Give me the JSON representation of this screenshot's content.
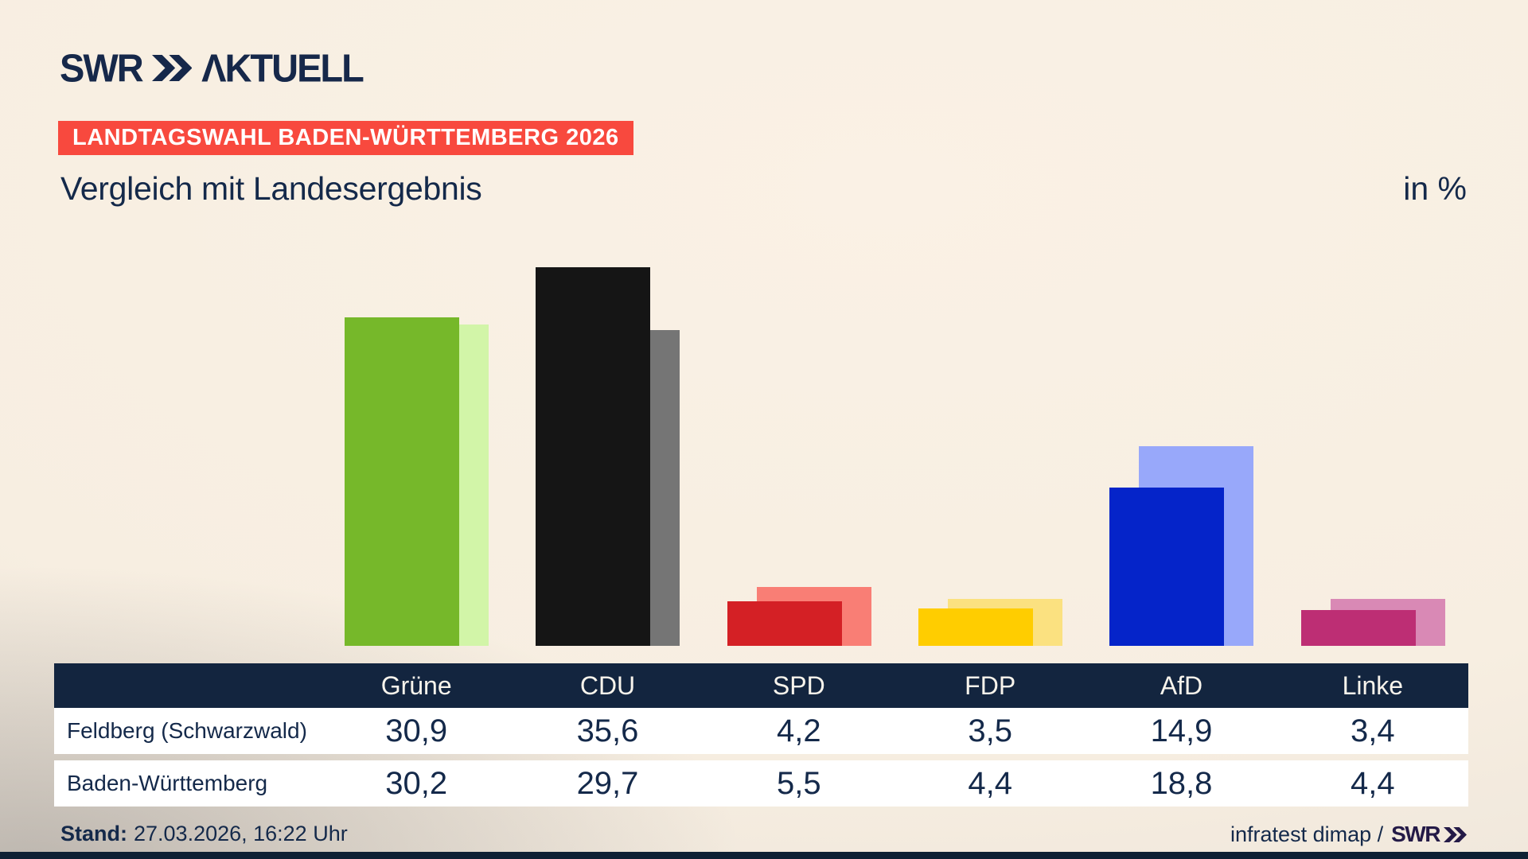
{
  "brand": {
    "logo_swr": "SWR",
    "logo_aktuell": "ΛKTUELL",
    "footer_logo": "SWR"
  },
  "header": {
    "badge": "LANDTAGSWAHL BADEN-WÜRTTEMBERG 2026",
    "title": "Vergleich mit Landesergebnis",
    "unit": "in %"
  },
  "footer": {
    "stand_label": "Stand:",
    "stand_value": "27.03.2026, 16:22 Uhr",
    "credit": "infratest dimap /"
  },
  "ui_colors": {
    "navy_text": "#14294a",
    "badge_bg": "#f8493e",
    "table_header_bg": "#13253f",
    "bottom_strip": "#0e2034",
    "credit_logo": "#241a47",
    "background": "#f7eee2"
  },
  "chart_data": {
    "type": "bar",
    "title": "Vergleich mit Landesergebnis",
    "unit": "in %",
    "grid": false,
    "legend_position": "table-rows",
    "categories": [
      "Grüne",
      "CDU",
      "SPD",
      "FDP",
      "AfD",
      "Linke"
    ],
    "party_keys": [
      "gruene",
      "cdu",
      "spd",
      "fdp",
      "afd",
      "linke"
    ],
    "series": [
      {
        "key": "feldberg",
        "name": "Feldberg (Schwarzwald)",
        "values": [
          30.9,
          35.6,
          4.2,
          3.5,
          14.9,
          3.4
        ]
      },
      {
        "key": "land",
        "name": "Baden-Württemberg",
        "values": [
          30.2,
          29.7,
          5.5,
          4.4,
          18.8,
          4.4
        ]
      }
    ],
    "colors": {
      "front": [
        "#76b82a",
        "#151515",
        "#d42025",
        "#ffcd00",
        "#0524c9",
        "#bd2e74"
      ],
      "back": [
        "#d2f5a8",
        "#757575",
        "#f97e75",
        "#fbe180",
        "#98a8fa",
        "#d989b5"
      ]
    },
    "ylim": [
      0,
      36.6
    ]
  }
}
